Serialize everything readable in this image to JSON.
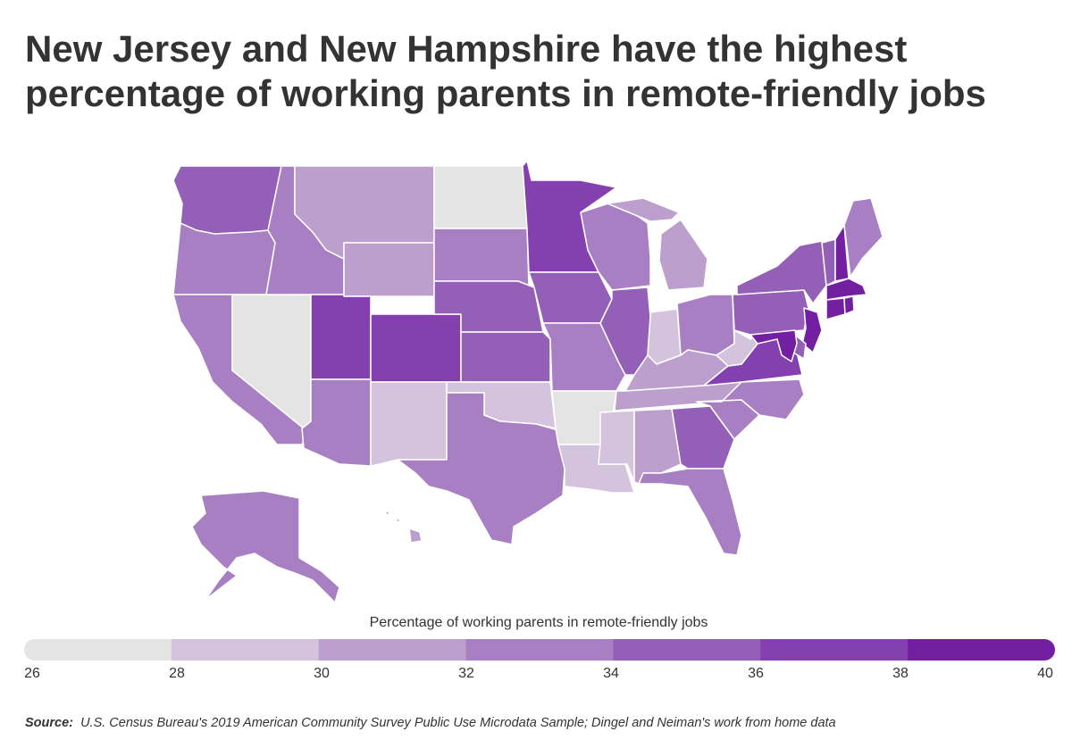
{
  "title_lines": [
    "New Jersey and New Hampshire have the highest",
    "percentage of working parents in remote-friendly jobs"
  ],
  "legend": {
    "title": "Percentage of working parents in remote-friendly jobs",
    "bins": [
      {
        "from": 26,
        "to": 28,
        "color": "#e4e4e4"
      },
      {
        "from": 28,
        "to": 30,
        "color": "#d4c3dd"
      },
      {
        "from": 30,
        "to": 32,
        "color": "#bc9fcc"
      },
      {
        "from": 32,
        "to": 34,
        "color": "#a97fc3"
      },
      {
        "from": 34,
        "to": 36,
        "color": "#9460b7"
      },
      {
        "from": 36,
        "to": 38,
        "color": "#8440ae"
      },
      {
        "from": 38,
        "to": 40,
        "color": "#721fa2"
      }
    ],
    "tick_labels": [
      "26",
      "28",
      "30",
      "32",
      "34",
      "36",
      "38",
      "40"
    ]
  },
  "source": {
    "label": "Source:",
    "text": "U.S. Census Bureau's 2019 American Community Survey Public Use Microdata Sample; Dingel and Neiman's work from home data"
  },
  "chart_data": {
    "type": "choropleth",
    "value_bins_by_state": {
      "WA": "34-36",
      "OR": "32-34",
      "CA": "32-34",
      "NV": "26-28",
      "ID": "32-34",
      "MT": "30-32",
      "WY": "30-32",
      "UT": "36-38",
      "CO": "36-38",
      "AZ": "32-34",
      "NM": "28-30",
      "ND": "26-28",
      "SD": "32-34",
      "NE": "34-36",
      "KS": "34-36",
      "OK": "28-30",
      "TX": "32-34",
      "MN": "36-38",
      "IA": "34-36",
      "MO": "32-34",
      "AR": "26-28",
      "LA": "28-30",
      "WI": "32-34",
      "IL": "34-36",
      "MI": "30-32",
      "IN": "28-30",
      "OH": "32-34",
      "KY": "30-32",
      "TN": "30-32",
      "MS": "28-30",
      "AL": "30-32",
      "GA": "34-36",
      "FL": "32-34",
      "SC": "32-34",
      "NC": "32-34",
      "VA": "36-38",
      "WV": "28-30",
      "PA": "34-36",
      "NY": "34-36",
      "VT": "34-36",
      "NH": "38-40",
      "ME": "32-34",
      "MA": "38-40",
      "RI": "38-40",
      "CT": "38-40",
      "NJ": "38-40",
      "DE": "34-36",
      "MD": "38-40",
      "AK": "32-34",
      "HI": "30-32"
    }
  }
}
